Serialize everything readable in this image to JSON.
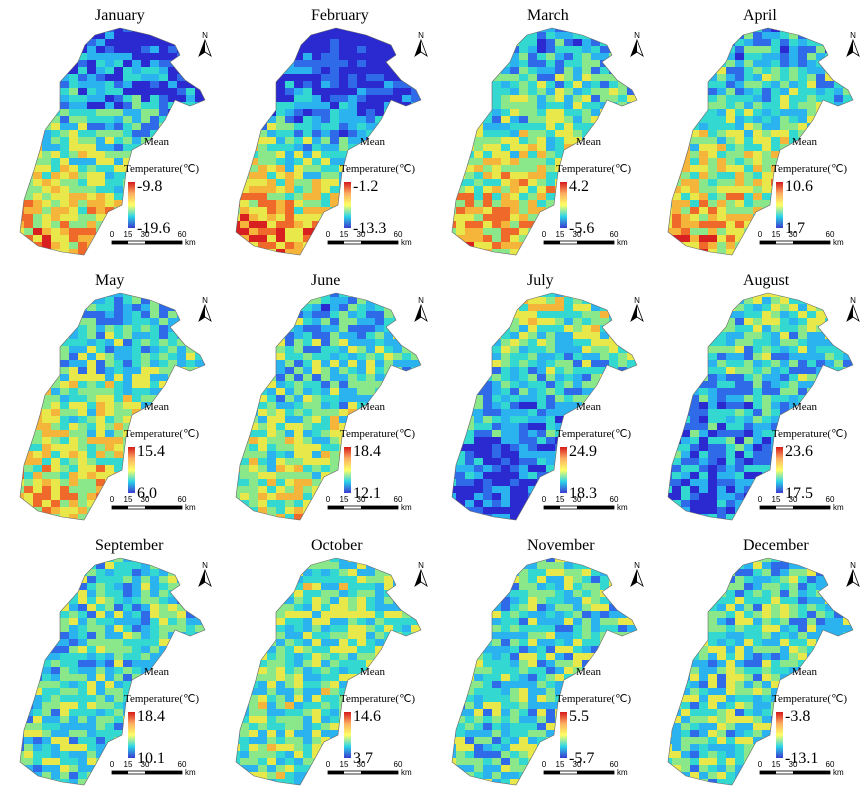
{
  "panels": [
    {
      "title": "January",
      "max": "-9.8",
      "min": "-19.6"
    },
    {
      "title": "February",
      "max": "-1.2",
      "min": "-13.3"
    },
    {
      "title": "March",
      "max": "4.2",
      "min": "-5.6"
    },
    {
      "title": "April",
      "max": "10.6",
      "min": "1.7"
    },
    {
      "title": "May",
      "max": "15.4",
      "min": "6.0"
    },
    {
      "title": "June",
      "max": "18.4",
      "min": "12.1"
    },
    {
      "title": "July",
      "max": "24.9",
      "min": "18.3"
    },
    {
      "title": "August",
      "max": "23.6",
      "min": "17.5"
    },
    {
      "title": "September",
      "max": "18.4",
      "min": "10.1"
    },
    {
      "title": "October",
      "max": "14.6",
      "min": "3.7"
    },
    {
      "title": "November",
      "max": "5.5",
      "min": "-5.7"
    },
    {
      "title": "December",
      "max": "-3.8",
      "min": "-13.1"
    }
  ],
  "legend": {
    "line1": "Mean",
    "line2": "Temperature(℃)"
  },
  "scale": {
    "ticks": [
      "0",
      "15",
      "30",
      "60"
    ],
    "unit": "km"
  },
  "north": "N"
}
